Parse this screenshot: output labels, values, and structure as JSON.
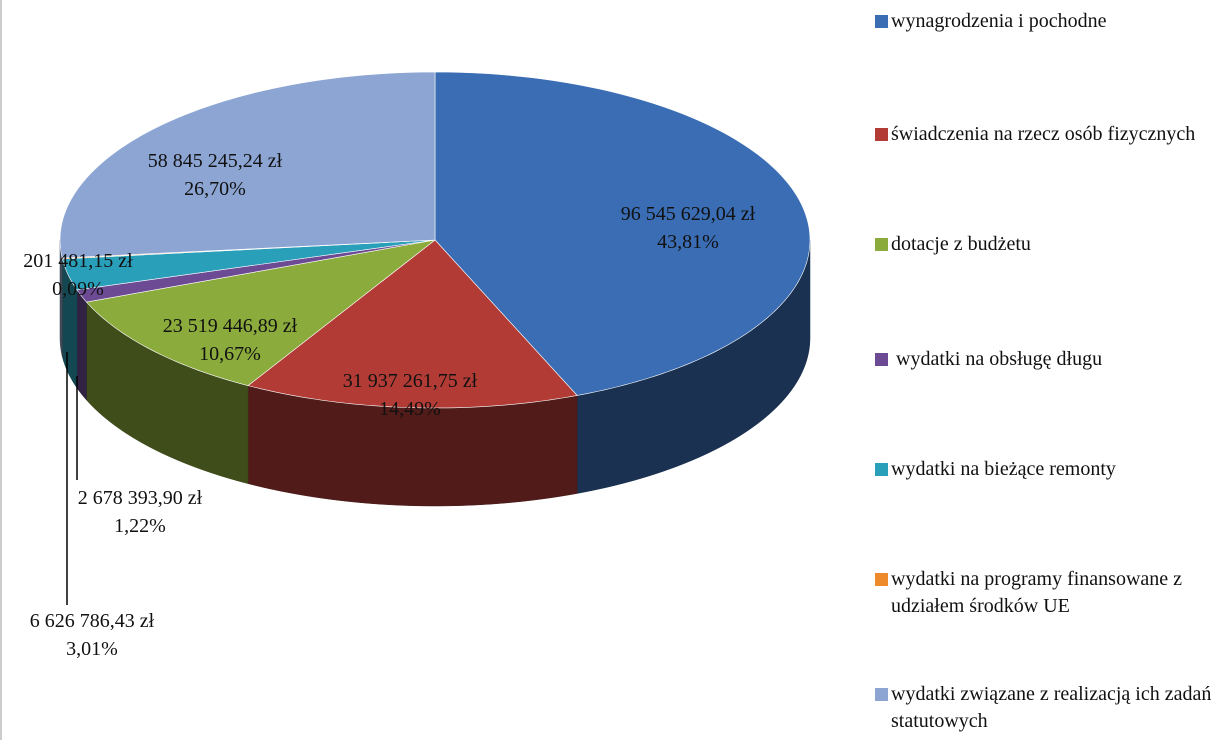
{
  "chart_data": {
    "type": "pie",
    "categories": [
      "wynagrodzenia i pochodne",
      "świadczenia na rzecz osób fizycznych",
      "dotacje z budżetu",
      " wydatki na obsługę długu",
      "wydatki na bieżące remonty",
      "wydatki na programy finansowane z udziałem środków UE",
      "wydatki związane z realizacją ich zadań statutowych"
    ],
    "values": [
      96545629.04,
      31937261.75,
      23519446.89,
      2678393.9,
      6626786.43,
      201481.15,
      58845245.24
    ],
    "value_labels": [
      "96 545 629,04 zł",
      "31 937 261,75 zł",
      "23 519 446,89 zł",
      "2 678 393,90 zł",
      "6 626 786,43 zł",
      "201 481,15 zł",
      "58 845 245,24 zł"
    ],
    "percents": [
      43.81,
      14.49,
      10.67,
      1.22,
      3.01,
      0.09,
      26.7
    ],
    "percent_labels": [
      "43,81%",
      "14,49%",
      "10,67%",
      "1,22%",
      "3,01%",
      "0,09%",
      "26,70%"
    ],
    "colors": [
      "#3a6db4",
      "#b23b36",
      "#8bab3d",
      "#6c4b94",
      "#2a9fb9",
      "#ee8a2c",
      "#8ca5d3"
    ],
    "legend": "right"
  }
}
